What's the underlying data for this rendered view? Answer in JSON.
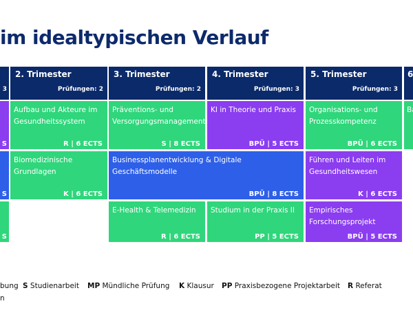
{
  "title": "im idealtypischen Verlauf",
  "headers": [
    {
      "name": "",
      "exams": "3"
    },
    {
      "name": "2. Trimester",
      "exams": "Prüfungen: 2"
    },
    {
      "name": "3. Trimester",
      "exams": "Prüfungen: 2"
    },
    {
      "name": "4. Trimester",
      "exams": "Prüfungen: 3"
    },
    {
      "name": "5. Trimester",
      "exams": "Prüfungen: 3"
    },
    {
      "name": "6",
      "exams": ""
    }
  ],
  "modules": [
    {
      "title": "",
      "code": "S",
      "color": "#8b3df0"
    },
    {
      "title": "",
      "code": "S",
      "color": "#2d5fe8"
    },
    {
      "title": "",
      "code": "S",
      "color": "#2fd67b"
    },
    {
      "title": "Aufbau und Akteure im Gesundheitssystem",
      "code": "R | 6 ECTS",
      "color": "#2fd67b"
    },
    {
      "title": "Biomedizinische Grundlagen",
      "code": "K | 6 ECTS",
      "color": "#2fd67b"
    },
    {
      "title": "Präventions- und Versorgungsmanagement",
      "code": "S | 8 ECTS",
      "color": "#2fd67b"
    },
    {
      "title": "Businessplanentwicklung & Digitale Geschäftsmodelle",
      "code": "BPÜ | 8 ECTS",
      "color": "#2d5fe8"
    },
    {
      "title": "E-Health & Telemedizin",
      "code": "R | 6 ECTS",
      "color": "#2fd67b"
    },
    {
      "title": "KI in Theorie und Praxis",
      "code": "BPÜ | 5 ECTS",
      "color": "#8b3df0"
    },
    {
      "title": "Studium in der Praxis II",
      "code": "PP | 5 ECTS",
      "color": "#2fd67b"
    },
    {
      "title": "Organisations- und Prozesskompetenz",
      "code": "BPÜ | 6 ECTS",
      "color": "#2fd67b"
    },
    {
      "title": "Führen und Leiten im Gesundheitswesen",
      "code": "K | 6 ECTS",
      "color": "#8b3df0"
    },
    {
      "title": "Empirisches Forschungsprojekt",
      "code": "BPÜ | 5 ECTS",
      "color": "#8b3df0"
    },
    {
      "title": "Ba",
      "code": "",
      "color": "#2fd67b"
    }
  ],
  "legend": [
    {
      "abbr": "",
      "text": "bung"
    },
    {
      "abbr": "S",
      "text": "Studienarbeit"
    },
    {
      "abbr": "MP",
      "text": "Mündliche Prüfung"
    },
    {
      "abbr": "K",
      "text": "Klausur"
    },
    {
      "abbr": "PP",
      "text": "Praxisbezogene Projektarbeit"
    },
    {
      "abbr": "R",
      "text": "Referat"
    }
  ],
  "legend_extra": "n"
}
